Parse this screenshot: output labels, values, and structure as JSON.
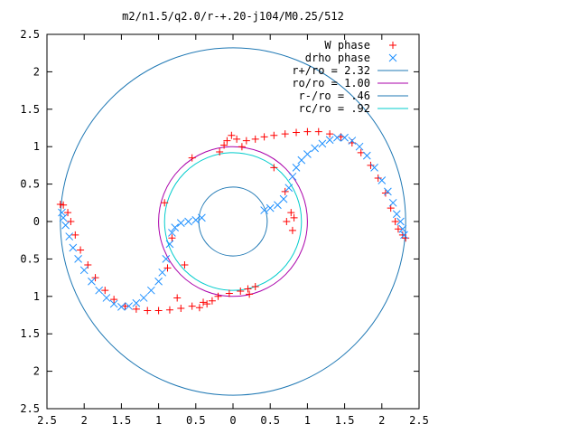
{
  "chart_data": {
    "type": "scatter",
    "title": "m2/n1.5/q2.0/r-+.20-j104/M0.25/512",
    "xlabel": "",
    "ylabel": "",
    "xlim": [
      -2.5,
      2.5
    ],
    "ylim": [
      -2.5,
      2.5
    ],
    "x_ticks": [
      -2.5,
      -2,
      -1.5,
      -1,
      -0.5,
      0,
      0.5,
      1,
      1.5,
      2,
      2.5
    ],
    "y_ticks": [
      -2.5,
      -2,
      -1.5,
      -1,
      -0.5,
      0,
      0.5,
      1,
      1.5,
      2,
      2.5
    ],
    "x_tick_labels": [
      "2.5",
      "2",
      "1.5",
      "1",
      "0.5",
      "0",
      "0.5",
      "1",
      "1.5",
      "2",
      "2.5"
    ],
    "y_tick_labels": [
      "2.5",
      "2",
      "1.5",
      "1",
      "0.5",
      "0",
      "0.5",
      "1",
      "1.5",
      "2",
      "2.5"
    ],
    "grid": false,
    "legend_position": "top-right",
    "series": [
      {
        "name": "W phase",
        "marker": "plus",
        "color": "#ff0000",
        "points": [
          [
            -2.32,
            0.23
          ],
          [
            -2.28,
            0.22
          ],
          [
            -2.22,
            0.12
          ],
          [
            -2.18,
            0.0
          ],
          [
            -2.12,
            -0.18
          ],
          [
            -2.05,
            -0.38
          ],
          [
            -1.95,
            -0.58
          ],
          [
            -1.85,
            -0.75
          ],
          [
            -1.72,
            -0.92
          ],
          [
            -1.6,
            -1.04
          ],
          [
            -1.45,
            -1.13
          ],
          [
            -1.3,
            -1.17
          ],
          [
            -1.15,
            -1.19
          ],
          [
            -1.0,
            -1.19
          ],
          [
            -0.85,
            -1.18
          ],
          [
            -0.7,
            -1.16
          ],
          [
            -0.55,
            -1.13
          ],
          [
            -0.4,
            -1.08
          ],
          [
            -0.28,
            -1.06
          ],
          [
            -0.2,
            -1.0
          ],
          [
            -0.05,
            -0.96
          ],
          [
            0.1,
            -0.93
          ],
          [
            0.2,
            -0.9
          ],
          [
            0.3,
            -0.87
          ],
          [
            -0.45,
            -1.15
          ],
          [
            -0.35,
            -1.1
          ],
          [
            0.22,
            -0.97
          ],
          [
            -0.75,
            -1.02
          ],
          [
            -0.65,
            -0.58
          ],
          [
            -0.88,
            -0.62
          ],
          [
            -0.82,
            -0.22
          ],
          [
            -0.92,
            0.25
          ],
          [
            -0.55,
            0.85
          ],
          [
            -0.18,
            0.93
          ],
          [
            0.12,
            1.0
          ],
          [
            -0.08,
            1.08
          ],
          [
            0.55,
            0.72
          ],
          [
            0.7,
            0.4
          ],
          [
            0.78,
            0.12
          ],
          [
            0.82,
            0.05
          ],
          [
            0.8,
            -0.12
          ],
          [
            0.72,
            0.0
          ],
          [
            -0.12,
            1.02
          ],
          [
            -0.02,
            1.15
          ],
          [
            0.05,
            1.1
          ],
          [
            0.18,
            1.08
          ],
          [
            0.3,
            1.1
          ],
          [
            0.42,
            1.13
          ],
          [
            0.55,
            1.15
          ],
          [
            0.7,
            1.17
          ],
          [
            0.85,
            1.19
          ],
          [
            1.0,
            1.2
          ],
          [
            1.15,
            1.2
          ],
          [
            1.3,
            1.17
          ],
          [
            1.45,
            1.13
          ],
          [
            1.6,
            1.05
          ],
          [
            1.72,
            0.92
          ],
          [
            1.85,
            0.75
          ],
          [
            1.95,
            0.58
          ],
          [
            2.05,
            0.38
          ],
          [
            2.12,
            0.18
          ],
          [
            2.18,
            0.0
          ],
          [
            2.22,
            -0.1
          ],
          [
            2.28,
            -0.18
          ],
          [
            2.32,
            -0.22
          ]
        ]
      },
      {
        "name": "drho phase",
        "marker": "cross",
        "color": "#1e90ff",
        "points": [
          [
            -2.3,
            0.12
          ],
          [
            -2.28,
            0.05
          ],
          [
            -2.25,
            -0.05
          ],
          [
            -2.2,
            -0.2
          ],
          [
            -2.15,
            -0.35
          ],
          [
            -2.08,
            -0.5
          ],
          [
            -2.0,
            -0.65
          ],
          [
            -1.9,
            -0.8
          ],
          [
            -1.8,
            -0.92
          ],
          [
            -1.7,
            -1.02
          ],
          [
            -1.6,
            -1.1
          ],
          [
            -1.5,
            -1.14
          ],
          [
            -1.4,
            -1.13
          ],
          [
            -1.3,
            -1.09
          ],
          [
            -1.2,
            -1.02
          ],
          [
            -1.1,
            -0.92
          ],
          [
            -1.0,
            -0.8
          ],
          [
            -0.95,
            -0.68
          ],
          [
            -0.9,
            -0.5
          ],
          [
            -0.85,
            -0.3
          ],
          [
            -0.82,
            -0.15
          ],
          [
            -0.78,
            -0.08
          ],
          [
            -0.7,
            -0.02
          ],
          [
            -0.6,
            0.0
          ],
          [
            -0.5,
            0.02
          ],
          [
            -0.42,
            0.05
          ],
          [
            0.42,
            0.15
          ],
          [
            0.5,
            0.18
          ],
          [
            0.6,
            0.22
          ],
          [
            0.68,
            0.3
          ],
          [
            0.75,
            0.45
          ],
          [
            0.8,
            0.6
          ],
          [
            0.85,
            0.72
          ],
          [
            0.92,
            0.82
          ],
          [
            1.0,
            0.9
          ],
          [
            1.1,
            0.98
          ],
          [
            1.2,
            1.04
          ],
          [
            1.3,
            1.09
          ],
          [
            1.4,
            1.12
          ],
          [
            1.5,
            1.12
          ],
          [
            1.6,
            1.08
          ],
          [
            1.7,
            1.0
          ],
          [
            1.8,
            0.88
          ],
          [
            1.9,
            0.72
          ],
          [
            2.0,
            0.55
          ],
          [
            2.08,
            0.4
          ],
          [
            2.15,
            0.25
          ],
          [
            2.2,
            0.1
          ],
          [
            2.25,
            0.0
          ],
          [
            2.28,
            -0.1
          ],
          [
            2.3,
            -0.18
          ]
        ]
      }
    ],
    "circles": [
      {
        "name": "r+/ro = 2.32",
        "radius": 2.32,
        "color": "#1f78b4"
      },
      {
        "name": "ro/ro = 1.00",
        "radius": 1.0,
        "color": "#aa00aa"
      },
      {
        "name": "r-/ro = .46",
        "radius": 0.46,
        "color": "#1f78b4"
      },
      {
        "name": "rc/ro = .92",
        "radius": 0.92,
        "color": "#00cccc"
      }
    ]
  }
}
